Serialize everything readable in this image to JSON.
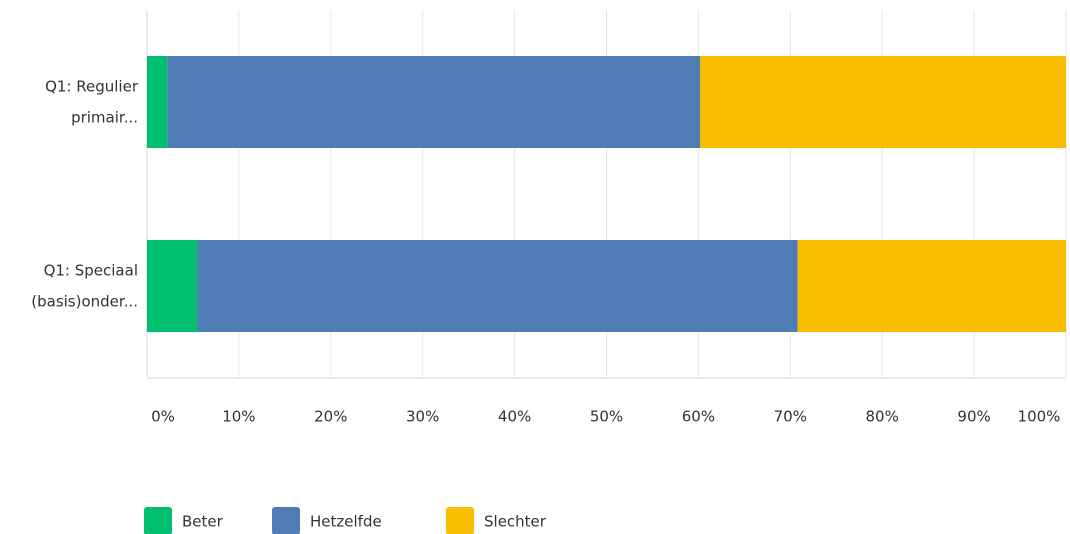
{
  "chart_data": {
    "type": "stacked-barh",
    "categories": [
      [
        "Q1: Regulier",
        "primair..."
      ],
      [
        "Q1: Speciaal",
        "(basis)onder..."
      ]
    ],
    "series": [
      {
        "name": "Beter",
        "color": "#00bf6f",
        "values": [
          2.2,
          5.5
        ]
      },
      {
        "name": "Hetzelfde",
        "color": "#507cb6",
        "values": [
          58.0,
          65.3
        ]
      },
      {
        "name": "Slechter",
        "color": "#f9be00",
        "values": [
          39.8,
          29.2
        ]
      }
    ],
    "xlim": [
      0,
      100
    ],
    "xticks": [
      {
        "value": 0,
        "label": "0%"
      },
      {
        "value": 10,
        "label": "10%"
      },
      {
        "value": 20,
        "label": "20%"
      },
      {
        "value": 30,
        "label": "30%"
      },
      {
        "value": 40,
        "label": "40%"
      },
      {
        "value": 50,
        "label": "50%"
      },
      {
        "value": 60,
        "label": "60%"
      },
      {
        "value": 70,
        "label": "70%"
      },
      {
        "value": 80,
        "label": "80%"
      },
      {
        "value": 90,
        "label": "90%"
      },
      {
        "value": 100,
        "label": "100%"
      }
    ],
    "grid": true
  }
}
